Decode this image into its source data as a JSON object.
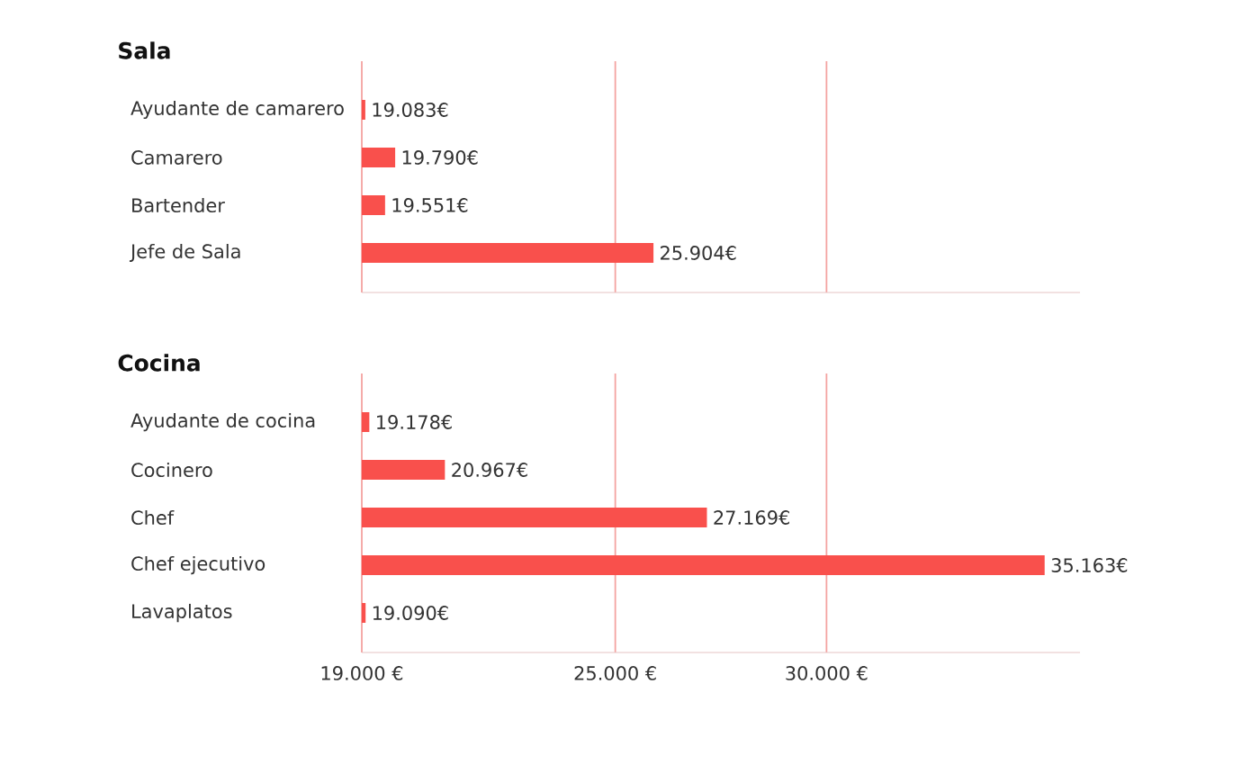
{
  "chart_data": [
    {
      "type": "bar",
      "orientation": "horizontal",
      "title": "Sala",
      "categories": [
        "Ayudante de camarero",
        "Camarero",
        "Bartender",
        "Jefe de Sala"
      ],
      "values": [
        19083,
        19790,
        19551,
        25904
      ],
      "value_labels": [
        "19.083€",
        "19.790€",
        "19.551€",
        "25.904€"
      ],
      "color": "#f9504c",
      "xlim": [
        19000,
        36000
      ],
      "xticks": [
        {
          "value": 19000,
          "label": null
        },
        {
          "value": 25000,
          "label": null
        },
        {
          "value": 30000,
          "label": null
        }
      ],
      "grid": "x",
      "tick_labels": "y"
    },
    {
      "type": "bar",
      "orientation": "horizontal",
      "title": "Cocina",
      "categories": [
        "Ayudante de cocina",
        "Cocinero",
        "Chef",
        "Chef ejecutivo",
        "Lavaplatos"
      ],
      "values": [
        19178,
        20967,
        27169,
        35163,
        19090
      ],
      "value_labels": [
        "19.178€",
        "20.967€",
        "27.169€",
        "35.163€",
        "19.090€"
      ],
      "color": "#f9504c",
      "xlim": [
        19000,
        36000
      ],
      "xticks": [
        {
          "value": 19000,
          "label": "19.000 €"
        },
        {
          "value": 25000,
          "label": "25.000 €"
        },
        {
          "value": 30000,
          "label": "30.000 €"
        }
      ],
      "grid": "x"
    }
  ]
}
